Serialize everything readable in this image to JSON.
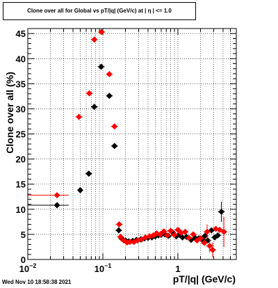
{
  "title": "Clone  over all for Global vs pT/|q| (GeV/c) at |  η  | <= 1.0",
  "footer": "Wed Nov 10 18:58:38 2021",
  "chart_data": {
    "type": "scatter",
    "title": "Clone  over all for Global vs pT/|q| (GeV/c) at |  η  | <= 1.0",
    "xlabel": "pT/|q| (GeV/c)",
    "ylabel": "Clone  over all (%)",
    "xscale": "log",
    "xlim": [
      0.01,
      6
    ],
    "ylim": [
      0,
      46
    ],
    "grid": true,
    "x_ticks": [
      {
        "value": 0.01,
        "base": "10",
        "exp": "−2"
      },
      {
        "value": 0.1,
        "base": "10",
        "exp": "−1"
      },
      {
        "value": 1,
        "base": "1",
        "exp": ""
      }
    ],
    "y_ticks": [
      "0",
      "5",
      "10",
      "15",
      "20",
      "25",
      "30",
      "35",
      "40",
      "45"
    ],
    "series": [
      {
        "color": "#000000",
        "marker": "diamond",
        "points": [
          {
            "x": 0.0245,
            "y": 10.8,
            "xerr": [
              0.0145,
              0.0105
            ]
          },
          {
            "x": 0.05,
            "y": 13.8,
            "xerr": [
              0.004,
              0.004
            ]
          },
          {
            "x": 0.065,
            "y": 17.1
          },
          {
            "x": 0.077,
            "y": 30.4
          },
          {
            "x": 0.095,
            "y": 38.4
          },
          {
            "x": 0.122,
            "y": 32.6
          },
          {
            "x": 0.143,
            "y": 22.6
          },
          {
            "x": 0.163,
            "y": 5.8
          },
          {
            "x": 0.18,
            "y": 4.1
          },
          {
            "x": 0.2,
            "y": 3.8
          },
          {
            "x": 0.22,
            "y": 3.6
          },
          {
            "x": 0.25,
            "y": 3.7
          },
          {
            "x": 0.28,
            "y": 3.9
          },
          {
            "x": 0.32,
            "y": 4.0
          },
          {
            "x": 0.36,
            "y": 4.2
          },
          {
            "x": 0.4,
            "y": 4.3
          },
          {
            "x": 0.45,
            "y": 4.4
          },
          {
            "x": 0.5,
            "y": 4.6
          },
          {
            "x": 0.55,
            "y": 4.8
          },
          {
            "x": 0.6,
            "y": 4.9
          },
          {
            "x": 0.67,
            "y": 5.0
          },
          {
            "x": 0.75,
            "y": 4.7
          },
          {
            "x": 0.85,
            "y": 5.4
          },
          {
            "x": 0.95,
            "y": 4.6
          },
          {
            "x": 1.05,
            "y": 5.0
          },
          {
            "x": 1.15,
            "y": 4.4
          },
          {
            "x": 1.3,
            "y": 4.5
          },
          {
            "x": 1.5,
            "y": 3.9
          },
          {
            "x": 1.7,
            "y": 4.3
          },
          {
            "x": 1.9,
            "y": 4.2
          },
          {
            "x": 2.1,
            "y": 4.0
          },
          {
            "x": 2.3,
            "y": 4.7
          },
          {
            "x": 2.5,
            "y": 3.8
          },
          {
            "x": 2.8,
            "y": 5.8
          },
          {
            "x": 3.1,
            "y": 4.4
          },
          {
            "x": 3.4,
            "y": 4.8
          },
          {
            "x": 3.8,
            "y": 9.5,
            "yerr": 2.0
          }
        ]
      },
      {
        "color": "#ff0000",
        "marker": "diamond",
        "points": [
          {
            "x": 0.0245,
            "y": 12.8,
            "xerr": [
              0.0145,
              0.0105
            ]
          },
          {
            "x": 0.048,
            "y": 28.4
          },
          {
            "x": 0.066,
            "y": 33.1
          },
          {
            "x": 0.077,
            "y": 43.8
          },
          {
            "x": 0.096,
            "y": 45.3
          },
          {
            "x": 0.122,
            "y": 36.9
          },
          {
            "x": 0.143,
            "y": 26.5
          },
          {
            "x": 0.165,
            "y": 7.0
          },
          {
            "x": 0.172,
            "y": 4.5
          },
          {
            "x": 0.19,
            "y": 3.8
          },
          {
            "x": 0.21,
            "y": 3.4
          },
          {
            "x": 0.23,
            "y": 3.5
          },
          {
            "x": 0.26,
            "y": 3.5
          },
          {
            "x": 0.29,
            "y": 3.8
          },
          {
            "x": 0.33,
            "y": 4.0
          },
          {
            "x": 0.37,
            "y": 4.4
          },
          {
            "x": 0.42,
            "y": 4.6
          },
          {
            "x": 0.47,
            "y": 4.8
          },
          {
            "x": 0.52,
            "y": 5.2
          },
          {
            "x": 0.58,
            "y": 5.0
          },
          {
            "x": 0.65,
            "y": 5.6
          },
          {
            "x": 0.72,
            "y": 4.8
          },
          {
            "x": 0.8,
            "y": 5.7
          },
          {
            "x": 0.9,
            "y": 4.9
          },
          {
            "x": 1.0,
            "y": 5.9
          },
          {
            "x": 1.1,
            "y": 5.3
          },
          {
            "x": 1.25,
            "y": 5.5
          },
          {
            "x": 1.4,
            "y": 4.3
          },
          {
            "x": 1.6,
            "y": 5.0
          },
          {
            "x": 1.8,
            "y": 3.8
          },
          {
            "x": 2.0,
            "y": 4.2
          },
          {
            "x": 2.25,
            "y": 3.3
          },
          {
            "x": 2.45,
            "y": 5.5,
            "yerr": 1.5
          },
          {
            "x": 2.65,
            "y": 2.7,
            "yerr": 1.3
          },
          {
            "x": 2.9,
            "y": 1.9,
            "yerr": 1.5
          },
          {
            "x": 3.2,
            "y": 6.1
          },
          {
            "x": 3.6,
            "y": 5.9
          },
          {
            "x": 4.1,
            "y": 5.5,
            "yerr": 3.0
          }
        ]
      }
    ]
  }
}
